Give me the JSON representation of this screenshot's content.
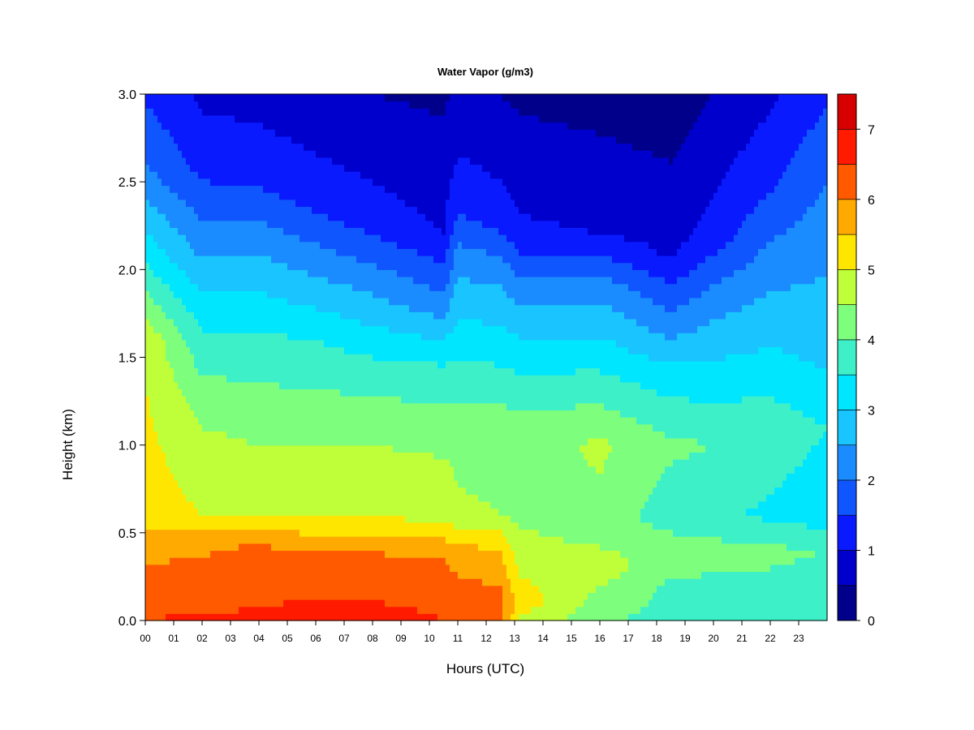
{
  "chart_data": {
    "type": "heatmap",
    "title": "Water Vapor (g/m3)",
    "xlabel": "Hours (UTC)",
    "ylabel": "Height (km)",
    "x_ticks": [
      "00",
      "01",
      "02",
      "03",
      "04",
      "05",
      "06",
      "07",
      "08",
      "09",
      "10",
      "11",
      "12",
      "13",
      "14",
      "15",
      "16",
      "17",
      "18",
      "19",
      "20",
      "21",
      "22",
      "23"
    ],
    "xlim": [
      0,
      24
    ],
    "y_ticks": [
      "0.0",
      "0.5",
      "1.0",
      "1.5",
      "2.0",
      "2.5",
      "3.0"
    ],
    "ylim": [
      0,
      3.0
    ],
    "colorbar": {
      "ticks": [
        "0",
        "1",
        "2",
        "3",
        "4",
        "5",
        "6",
        "7"
      ],
      "range": [
        0,
        7.5
      ],
      "levels": [
        0,
        0.5,
        1,
        1.5,
        2,
        2.5,
        3,
        3.5,
        4,
        4.5,
        5,
        5.5,
        6,
        6.5,
        7,
        7.5
      ],
      "colors": [
        "#00008b",
        "#0000cd",
        "#0a1aff",
        "#1056ff",
        "#1a8cff",
        "#19c4ff",
        "#00e6ff",
        "#3ef0c8",
        "#7dff7d",
        "#bfff3a",
        "#ffe600",
        "#ffaa00",
        "#ff5a00",
        "#ff1a00",
        "#d60000",
        "#8b0000"
      ]
    },
    "profiles": [
      {
        "hour": 0,
        "heights": [
          0,
          0.2,
          0.45,
          0.6,
          1.6,
          2.0,
          2.5,
          3.0
        ],
        "values": [
          6.5,
          6.2,
          5.8,
          5.3,
          4.9,
          3.6,
          2.2,
          1.4
        ]
      },
      {
        "hour": 2,
        "heights": [
          0,
          0.2,
          0.45,
          0.6,
          1.2,
          1.7,
          2.1,
          2.6,
          3.0
        ],
        "values": [
          6.6,
          6.2,
          5.9,
          5.0,
          4.4,
          3.4,
          2.4,
          1.3,
          0.9
        ]
      },
      {
        "hour": 4,
        "heights": [
          0,
          0.2,
          0.45,
          0.6,
          1.1,
          1.6,
          2.1,
          2.5,
          3.0
        ],
        "values": [
          6.6,
          6.3,
          6.0,
          4.9,
          4.4,
          3.6,
          2.5,
          1.4,
          0.8
        ]
      },
      {
        "hour": 6,
        "heights": [
          0,
          0.15,
          0.4,
          0.6,
          1.1,
          1.6,
          2.0,
          2.4,
          3.0
        ],
        "values": [
          6.9,
          6.4,
          6.0,
          4.9,
          4.4,
          3.5,
          2.4,
          1.3,
          0.6
        ]
      },
      {
        "hour": 8,
        "heights": [
          0,
          0.15,
          0.4,
          0.6,
          1.1,
          1.5,
          1.9,
          2.3,
          3.0
        ],
        "values": [
          6.8,
          6.4,
          6.0,
          4.9,
          4.4,
          3.5,
          2.4,
          1.2,
          0.5
        ]
      },
      {
        "hour": 10.5,
        "heights": [
          0,
          0.2,
          0.35,
          0.6,
          1.1,
          1.5,
          1.8,
          2.2,
          3.0
        ],
        "values": [
          6.5,
          6.2,
          6.0,
          4.9,
          4.3,
          3.4,
          2.2,
          1.0,
          0.4
        ]
      },
      {
        "hour": 11,
        "heights": [
          0,
          0.2,
          0.4,
          0.6,
          1.1,
          1.5,
          2.0,
          2.4,
          3.0
        ],
        "values": [
          6.3,
          6.1,
          5.7,
          4.6,
          4.3,
          3.5,
          2.4,
          1.3,
          0.6
        ]
      },
      {
        "hour": 12.5,
        "heights": [
          0,
          0.2,
          0.4,
          0.6,
          1.1,
          1.5,
          2.0,
          2.3,
          3.0
        ],
        "values": [
          6.1,
          6.0,
          5.5,
          4.5,
          4.3,
          3.4,
          2.3,
          1.2,
          0.5
        ]
      },
      {
        "hour": 13.2,
        "heights": [
          0,
          0.1,
          0.35,
          0.6,
          1.1,
          1.5,
          1.9,
          2.2,
          3.0
        ],
        "values": [
          4.9,
          5.3,
          4.8,
          4.4,
          4.2,
          3.3,
          2.2,
          1.1,
          0.4
        ]
      },
      {
        "hour": 16,
        "heights": [
          0,
          0.15,
          0.3,
          0.5,
          1.0,
          1.5,
          1.9,
          2.2,
          3.0
        ],
        "values": [
          4.1,
          4.4,
          4.8,
          4.3,
          4.6,
          3.3,
          2.3,
          1.0,
          0.3
        ]
      },
      {
        "hour": 18.5,
        "heights": [
          0,
          0.2,
          0.4,
          0.6,
          1.0,
          1.4,
          1.7,
          2.1,
          3.0
        ],
        "values": [
          3.8,
          3.9,
          4.3,
          3.7,
          4.1,
          3.2,
          2.2,
          0.9,
          0.2
        ]
      },
      {
        "hour": 20,
        "heights": [
          0,
          0.2,
          0.4,
          0.6,
          1.0,
          1.4,
          1.8,
          2.2,
          3.0
        ],
        "values": [
          3.8,
          3.9,
          4.2,
          3.6,
          4.0,
          3.2,
          2.3,
          1.2,
          0.5
        ]
      },
      {
        "hour": 22,
        "heights": [
          0,
          0.2,
          0.4,
          0.6,
          1.1,
          1.5,
          2.0,
          2.5,
          3.0
        ],
        "values": [
          3.9,
          3.9,
          4.1,
          3.4,
          3.8,
          3.1,
          2.3,
          1.4,
          0.9
        ]
      },
      {
        "hour": 24,
        "heights": [
          0,
          0.2,
          0.4,
          0.6,
          1.1,
          1.5,
          2.1,
          2.7,
          3.0
        ],
        "values": [
          3.9,
          3.8,
          4.0,
          3.2,
          3.5,
          2.9,
          2.4,
          1.8,
          1.4
        ]
      }
    ]
  }
}
